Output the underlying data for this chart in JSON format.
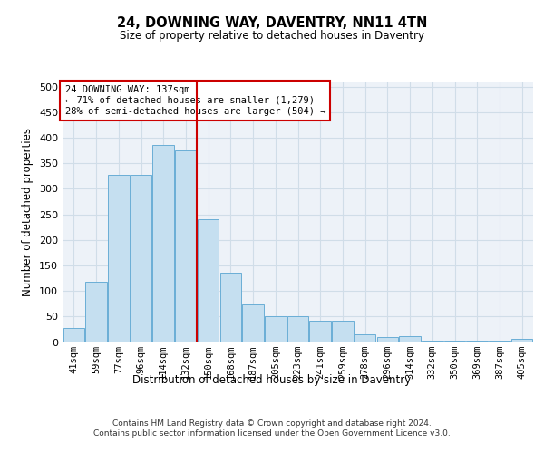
{
  "title1": "24, DOWNING WAY, DAVENTRY, NN11 4TN",
  "title2": "Size of property relative to detached houses in Daventry",
  "xlabel": "Distribution of detached houses by size in Daventry",
  "ylabel": "Number of detached properties",
  "categories": [
    "41sqm",
    "59sqm",
    "77sqm",
    "96sqm",
    "114sqm",
    "132sqm",
    "150sqm",
    "168sqm",
    "187sqm",
    "205sqm",
    "223sqm",
    "241sqm",
    "259sqm",
    "278sqm",
    "296sqm",
    "314sqm",
    "332sqm",
    "350sqm",
    "369sqm",
    "387sqm",
    "405sqm"
  ],
  "values": [
    28,
    118,
    328,
    328,
    385,
    375,
    240,
    135,
    73,
    50,
    50,
    42,
    42,
    15,
    10,
    12,
    3,
    3,
    2,
    2,
    7
  ],
  "bar_color": "#c5dff0",
  "bar_edge_color": "#6aaed6",
  "grid_color": "#d0dde8",
  "background_color": "#edf2f8",
  "vline_x": 5.5,
  "vline_color": "#cc0000",
  "annotation_text": "24 DOWNING WAY: 137sqm\n← 71% of detached houses are smaller (1,279)\n28% of semi-detached houses are larger (504) →",
  "annotation_box_color": "#ffffff",
  "annotation_box_edge": "#cc0000",
  "footer1": "Contains HM Land Registry data © Crown copyright and database right 2024.",
  "footer2": "Contains public sector information licensed under the Open Government Licence v3.0.",
  "ylim": [
    0,
    510
  ],
  "yticks": [
    0,
    50,
    100,
    150,
    200,
    250,
    300,
    350,
    400,
    450,
    500
  ]
}
